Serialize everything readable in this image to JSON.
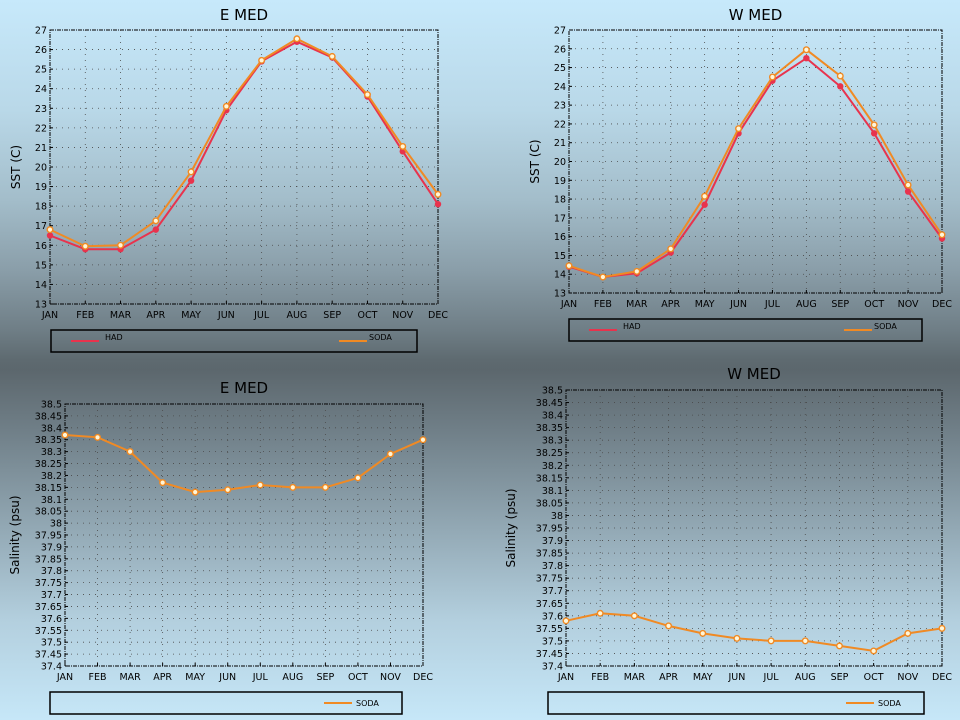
{
  "colors": {
    "had": "#e8334d",
    "soda": "#f08a24",
    "legend_border": "#000000"
  },
  "legend": {
    "had": "HAD",
    "soda": "SODA"
  },
  "chart_data": [
    {
      "id": "e-med-sst",
      "type": "line",
      "title": "E MED",
      "xlabel": "",
      "ylabel": "SST (C)",
      "categories": [
        "JAN",
        "FEB",
        "MAR",
        "APR",
        "MAY",
        "JUN",
        "JUL",
        "AUG",
        "SEP",
        "OCT",
        "NOV",
        "DEC"
      ],
      "ylim": [
        13,
        27
      ],
      "yticks": [
        "13",
        "14",
        "15",
        "16",
        "17",
        "18",
        "19",
        "20",
        "21",
        "22",
        "23",
        "24",
        "25",
        "26",
        "27"
      ],
      "series": [
        {
          "name": "HAD",
          "values": [
            16.5,
            15.8,
            15.8,
            16.8,
            19.3,
            22.9,
            25.4,
            26.4,
            25.6,
            23.6,
            20.8,
            18.1
          ]
        },
        {
          "name": "SODA",
          "values": [
            16.8,
            15.95,
            16.0,
            17.25,
            19.75,
            23.1,
            25.45,
            26.55,
            25.65,
            23.7,
            21.05,
            18.6
          ]
        }
      ],
      "grid": true
    },
    {
      "id": "w-med-sst",
      "type": "line",
      "title": "W MED",
      "xlabel": "",
      "ylabel": "SST (C)",
      "categories": [
        "JAN",
        "FEB",
        "MAR",
        "APR",
        "MAY",
        "JUN",
        "JUL",
        "AUG",
        "SEP",
        "OCT",
        "NOV",
        "DEC"
      ],
      "ylim": [
        13,
        27
      ],
      "yticks": [
        "13",
        "14",
        "15",
        "16",
        "17",
        "18",
        "19",
        "20",
        "21",
        "22",
        "23",
        "24",
        "25",
        "26",
        "27"
      ],
      "series": [
        {
          "name": "HAD",
          "values": [
            14.4,
            13.85,
            14.05,
            15.15,
            17.7,
            21.5,
            24.3,
            25.5,
            24.0,
            21.5,
            18.4,
            15.9
          ]
        },
        {
          "name": "SODA",
          "values": [
            14.45,
            13.85,
            14.15,
            15.35,
            18.15,
            21.75,
            24.5,
            25.95,
            24.55,
            21.95,
            18.75,
            16.1
          ]
        }
      ],
      "grid": true
    },
    {
      "id": "e-med-salinity",
      "type": "line",
      "title": "E MED",
      "xlabel": "",
      "ylabel": "Salinity (psu)",
      "categories": [
        "JAN",
        "FEB",
        "MAR",
        "APR",
        "MAY",
        "JUN",
        "JUL",
        "AUG",
        "SEP",
        "OCT",
        "NOV",
        "DEC"
      ],
      "ylim": [
        37.4,
        38.5
      ],
      "yticks": [
        "37.4",
        "37.45",
        "37.5",
        "37.55",
        "37.6",
        "37.65",
        "37.7",
        "37.75",
        "37.8",
        "37.85",
        "37.9",
        "37.95",
        "38",
        "38.05",
        "38.1",
        "38.15",
        "38.2",
        "38.25",
        "38.3",
        "38.35",
        "38.4",
        "38.45",
        "38.5"
      ],
      "series": [
        {
          "name": "SODA",
          "values": [
            38.37,
            38.36,
            38.3,
            38.17,
            38.13,
            38.14,
            38.16,
            38.15,
            38.15,
            38.19,
            38.29,
            38.35
          ]
        }
      ],
      "grid": true
    },
    {
      "id": "w-med-salinity",
      "type": "line",
      "title": "W MED",
      "xlabel": "",
      "ylabel": "Salinity (psu)",
      "categories": [
        "JAN",
        "FEB",
        "MAR",
        "APR",
        "MAY",
        "JUN",
        "JUL",
        "AUG",
        "SEP",
        "OCT",
        "NOV",
        "DEC"
      ],
      "ylim": [
        37.4,
        38.5
      ],
      "yticks": [
        "37.4",
        "37.45",
        "37.5",
        "37.55",
        "37.6",
        "37.65",
        "37.7",
        "37.75",
        "37.8",
        "37.85",
        "37.9",
        "37.95",
        "38",
        "38.05",
        "38.1",
        "38.15",
        "38.2",
        "38.25",
        "38.3",
        "38.35",
        "38.4",
        "38.45",
        "38.5"
      ],
      "series": [
        {
          "name": "SODA",
          "values": [
            37.58,
            37.61,
            37.6,
            37.56,
            37.53,
            37.51,
            37.5,
            37.5,
            37.48,
            37.46,
            37.53,
            37.55
          ]
        }
      ],
      "grid": true
    }
  ]
}
